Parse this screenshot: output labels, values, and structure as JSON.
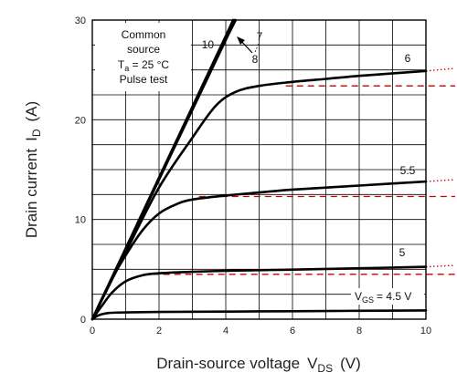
{
  "chart_data": {
    "type": "line",
    "title": "",
    "xlabel_main": "Drain-source voltage",
    "xlabel_sym": "V",
    "xlabel_sub": "DS",
    "xlabel_unit": "(V)",
    "ylabel_main": "Drain current",
    "ylabel_sym": "I",
    "ylabel_sub": "D",
    "ylabel_unit": "(A)",
    "xlim": [
      0,
      10
    ],
    "ylim": [
      0,
      30
    ],
    "xticks": [
      "0",
      "2",
      "4",
      "6",
      "8",
      "10"
    ],
    "yticks": [
      "0",
      "10",
      "20",
      "30"
    ],
    "grid": true,
    "conditions": {
      "line1": "Common",
      "line2": "source",
      "line3_prefix": "T",
      "line3_sub": "a",
      "line3_suffix": " = 25 °C",
      "line4": "Pulse test"
    },
    "vgs_prefix": "V",
    "vgs_sub": "GS",
    "series": [
      {
        "name": "4.5 V",
        "label": "= 4.5 V",
        "points": [
          [
            0,
            0
          ],
          [
            0.2,
            0.4
          ],
          [
            0.5,
            0.62
          ],
          [
            1,
            0.68
          ],
          [
            2,
            0.72
          ],
          [
            4,
            0.76
          ],
          [
            6,
            0.8
          ],
          [
            8,
            0.84
          ],
          [
            10,
            0.88
          ]
        ]
      },
      {
        "name": "5",
        "label": "5",
        "points": [
          [
            0,
            0
          ],
          [
            0.3,
            1.4
          ],
          [
            0.6,
            2.7
          ],
          [
            1,
            3.8
          ],
          [
            1.5,
            4.4
          ],
          [
            2,
            4.6
          ],
          [
            3,
            4.75
          ],
          [
            4,
            4.85
          ],
          [
            6,
            4.97
          ],
          [
            8,
            5.1
          ],
          [
            10,
            5.25
          ]
        ]
      },
      {
        "name": "5.5",
        "label": "5.5",
        "points": [
          [
            0,
            0
          ],
          [
            0.5,
            3.5
          ],
          [
            1,
            6.4
          ],
          [
            1.5,
            8.9
          ],
          [
            2,
            10.6
          ],
          [
            2.5,
            11.5
          ],
          [
            3,
            12.0
          ],
          [
            4,
            12.4
          ],
          [
            5,
            12.7
          ],
          [
            6,
            13.0
          ],
          [
            8,
            13.4
          ],
          [
            10,
            13.8
          ]
        ]
      },
      {
        "name": "6",
        "label": "6",
        "points": [
          [
            0,
            0
          ],
          [
            1,
            6.7
          ],
          [
            2,
            13.2
          ],
          [
            3,
            18.2
          ],
          [
            3.7,
            21.4
          ],
          [
            4.3,
            22.8
          ],
          [
            5,
            23.4
          ],
          [
            6,
            23.8
          ],
          [
            7,
            24.1
          ],
          [
            8,
            24.4
          ],
          [
            10,
            24.9
          ]
        ]
      },
      {
        "name": "7",
        "label": "7",
        "points": [
          [
            0,
            0
          ],
          [
            1,
            7.0
          ],
          [
            2,
            14.0
          ],
          [
            3,
            21.0
          ],
          [
            4,
            28.0
          ],
          [
            4.3,
            30.0
          ]
        ]
      },
      {
        "name": "8",
        "label": "8",
        "points": [
          [
            0,
            0
          ],
          [
            1,
            7.05
          ],
          [
            2,
            14.1
          ],
          [
            3,
            21.15
          ],
          [
            4,
            28.2
          ],
          [
            4.26,
            30.0
          ]
        ]
      },
      {
        "name": "10",
        "label": "10",
        "points": [
          [
            0,
            0
          ],
          [
            1,
            7.1
          ],
          [
            2,
            14.2
          ],
          [
            3,
            21.3
          ],
          [
            4,
            28.4
          ],
          [
            4.22,
            30.0
          ]
        ]
      }
    ],
    "extrapolation": [
      {
        "style": "dotted",
        "points": [
          [
            10,
            24.9
          ],
          [
            11.0,
            25.15
          ]
        ]
      },
      {
        "style": "dashed",
        "points": [
          [
            5.8,
            23.4
          ],
          [
            11.0,
            23.4
          ]
        ]
      },
      {
        "style": "dotted",
        "points": [
          [
            10,
            13.8
          ],
          [
            11.0,
            14.0
          ]
        ]
      },
      {
        "style": "dashed",
        "points": [
          [
            3.2,
            12.3
          ],
          [
            11.0,
            12.3
          ]
        ]
      },
      {
        "style": "dotted",
        "points": [
          [
            10,
            5.25
          ],
          [
            11.0,
            5.4
          ]
        ]
      },
      {
        "style": "dashed",
        "points": [
          [
            1.8,
            4.5
          ],
          [
            11.0,
            4.5
          ]
        ]
      }
    ],
    "colors": {
      "curves": "#000000",
      "extrapolation": "#cc0000",
      "grid": "#000000"
    }
  }
}
